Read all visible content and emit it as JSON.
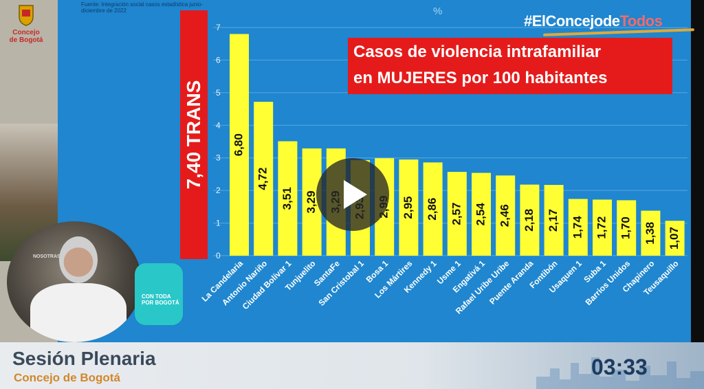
{
  "broadcaster": {
    "logo_text_1": "Concejo",
    "logo_text_2": "de Bogotá"
  },
  "source_note": "Fuente: Integración social casos estadística junio-diciembre de 2022",
  "unit_label": "%",
  "hashtag": {
    "prefix": "#ElConcejo",
    "middle": "de",
    "suffix": "Todos"
  },
  "title": {
    "line1": "Casos de violencia intrafamiliar",
    "line2": "en MUJERES por 100 habitantes"
  },
  "trans_label": "7,40 TRANS",
  "chart_data": {
    "type": "bar",
    "title": "Casos de violencia intrafamiliar en MUJERES por 100 habitantes",
    "ylabel": "%",
    "ylim": [
      0,
      7
    ],
    "yticks": [
      "0",
      "1",
      "2",
      "3",
      "4",
      "5",
      "6",
      "7"
    ],
    "grid": true,
    "categories": [
      "La Candelaria",
      "Antonio Nariño",
      "Ciudad Bolívar 1",
      "Tunjuelito",
      "SantaFe",
      "San Cristobal 1",
      "Bosa 1",
      "Los Mártires",
      "Kennedy 1",
      "Usme 1",
      "Engativá 1",
      "Rafael Uribe Uribe",
      "Puente Aranda",
      "Fontibón",
      "Usaquen 1",
      "Suba 1",
      "Barrios Unidos",
      "Chapinero",
      "Teusaquillo"
    ],
    "values": [
      6.8,
      4.72,
      3.51,
      3.29,
      3.29,
      2.93,
      2.99,
      2.95,
      2.86,
      2.57,
      2.54,
      2.46,
      2.18,
      2.17,
      1.74,
      1.72,
      1.7,
      1.38,
      1.07
    ],
    "value_labels": [
      "6,80",
      "4,72",
      "3,51",
      "3,29",
      "3,29",
      "2,93",
      "2,99",
      "2,95",
      "2,86",
      "2,57",
      "2,54",
      "2,46",
      "2,18",
      "2,17",
      "1,74",
      "1,72",
      "1,70",
      "1,38",
      "1,07"
    ],
    "bar_color": "#ffff33",
    "annotation": {
      "label": "7,40 TRANS",
      "value": 7.4,
      "color": "#e51b1b"
    }
  },
  "speaker": {
    "banner": "NOSOTRAS"
  },
  "badge": {
    "text": "CON TODA POR BOGOTÁ"
  },
  "lower_third": {
    "title": "Sesión Plenaria",
    "subtitle": "Concejo de Bogotá",
    "timer": "03:33"
  },
  "colors": {
    "panel": "#1f86cf",
    "accent_red": "#e51b1b",
    "bar_yellow": "#ffff33"
  }
}
